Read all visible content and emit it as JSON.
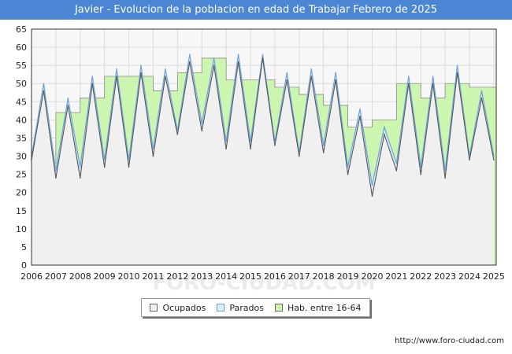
{
  "chart_data": {
    "type": "area",
    "title": "Javier - Evolucion de la poblacion en edad de Trabajar Febrero de 2025",
    "xlabel": "",
    "ylabel": "",
    "ylim": [
      0,
      65
    ],
    "y_ticks": [
      0,
      5,
      10,
      15,
      20,
      25,
      30,
      35,
      40,
      45,
      50,
      55,
      60,
      65
    ],
    "x_ticks": [
      "2006",
      "2007",
      "2008",
      "2009",
      "2010",
      "2011",
      "2012",
      "2013",
      "2014",
      "2015",
      "2016",
      "2017",
      "2018",
      "2019",
      "2020",
      "2021",
      "2022",
      "2023",
      "2024",
      "2025"
    ],
    "xlim": [
      2006,
      2025.1
    ],
    "grid": true,
    "legend_position": "bottom-center",
    "series": [
      {
        "name": "Hab. entre 16-64",
        "color": "#ccf5b0",
        "note": "annual values",
        "x": [
          2006,
          2007,
          2008,
          2009,
          2010,
          2011,
          2012,
          2013,
          2014,
          2015,
          2016,
          2017,
          2018,
          2019,
          2020,
          2021,
          2022,
          2023,
          2024
        ],
        "values": [
          28,
          42,
          46,
          52,
          52,
          48,
          53,
          57,
          51,
          51,
          49,
          47,
          44,
          38,
          40,
          50,
          46,
          50,
          49
        ]
      },
      {
        "name": "Parados",
        "color": "#ddeeff",
        "note": "semi-annual values",
        "x": [
          2006.0,
          2006.5,
          2007.0,
          2007.5,
          2008.0,
          2008.5,
          2009.0,
          2009.5,
          2010.0,
          2010.5,
          2011.0,
          2011.5,
          2012.0,
          2012.5,
          2013.0,
          2013.5,
          2014.0,
          2014.5,
          2015.0,
          2015.5,
          2016.0,
          2016.5,
          2017.0,
          2017.5,
          2018.0,
          2018.5,
          2019.0,
          2019.5,
          2020.0,
          2020.5,
          2021.0,
          2021.5,
          2022.0,
          2022.5,
          2023.0,
          2023.5,
          2024.0,
          2024.5,
          2025.0
        ],
        "values": [
          30,
          50,
          26,
          46,
          27,
          52,
          29,
          54,
          29,
          55,
          32,
          54,
          37,
          58,
          39,
          57,
          34,
          58,
          34,
          58,
          34,
          53,
          31,
          54,
          33,
          53,
          27,
          43,
          22,
          38,
          28,
          52,
          27,
          52,
          26,
          55,
          30,
          48,
          30
        ]
      },
      {
        "name": "Ocupados",
        "color": "#f0f0f0",
        "note": "semi-annual values",
        "x": [
          2006.0,
          2006.5,
          2007.0,
          2007.5,
          2008.0,
          2008.5,
          2009.0,
          2009.5,
          2010.0,
          2010.5,
          2011.0,
          2011.5,
          2012.0,
          2012.5,
          2013.0,
          2013.5,
          2014.0,
          2014.5,
          2015.0,
          2015.5,
          2016.0,
          2016.5,
          2017.0,
          2017.5,
          2018.0,
          2018.5,
          2019.0,
          2019.5,
          2020.0,
          2020.5,
          2021.0,
          2021.5,
          2022.0,
          2022.5,
          2023.0,
          2023.5,
          2024.0,
          2024.5,
          2025.0
        ],
        "values": [
          29,
          48,
          24,
          44,
          24,
          50,
          27,
          52,
          27,
          53,
          30,
          52,
          36,
          56,
          37,
          55,
          32,
          56,
          32,
          57,
          33,
          51,
          30,
          52,
          31,
          51,
          25,
          41,
          19,
          36,
          26,
          50,
          25,
          50,
          24,
          53,
          29,
          46,
          29
        ]
      }
    ],
    "legend": [
      "Ocupados",
      "Parados",
      "Hab. entre 16-64"
    ],
    "watermark": "FORO-CIUDAD.COM",
    "source": "http://www.foro-ciudad.com"
  }
}
